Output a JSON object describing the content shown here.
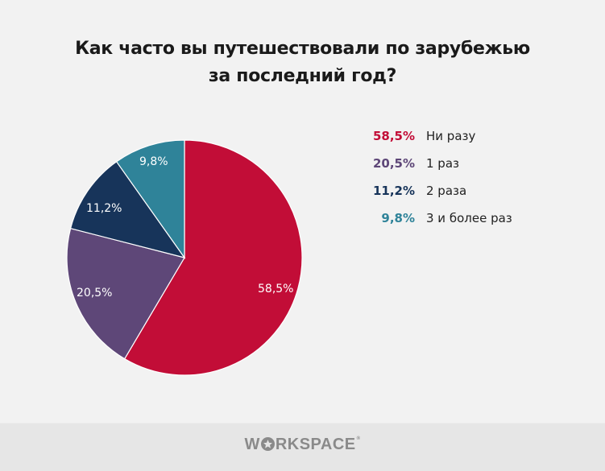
{
  "title": {
    "line1": "Как часто вы путешествовали по зарубежью",
    "line2": "за последний год?"
  },
  "legend": [
    {
      "pct": "58,5%",
      "label": "Ни разу",
      "color": "#c20d37"
    },
    {
      "pct": "20,5%",
      "label": "1 раз",
      "color": "#5e4778"
    },
    {
      "pct": "11,2%",
      "label": "2 раза",
      "color": "#17345a"
    },
    {
      "pct": "9,8%",
      "label": "3 и более раз",
      "color": "#2f8399"
    }
  ],
  "slice_labels": [
    "58,5%",
    "20,5%",
    "11,2%",
    "9,8%"
  ],
  "footer": {
    "logo_pre": "W",
    "logo_post": "RKSPACE",
    "logo_mark": "®"
  },
  "chart_data": {
    "type": "pie",
    "title": "Как часто вы путешествовали по зарубежью за последний год?",
    "categories": [
      "Ни разу",
      "1 раз",
      "2 раза",
      "3 и более раз"
    ],
    "values": [
      58.5,
      20.5,
      11.2,
      9.8
    ],
    "unit": "%",
    "colors": [
      "#c20d37",
      "#5e4778",
      "#17345a",
      "#2f8399"
    ],
    "start_angle": "12 o'clock",
    "direction": "clockwise",
    "legend_position": "right",
    "data_labels": true
  }
}
